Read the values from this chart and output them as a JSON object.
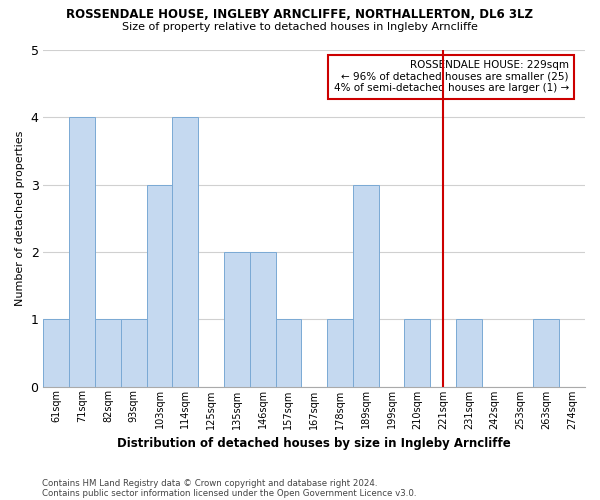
{
  "title1": "ROSSENDALE HOUSE, INGLEBY ARNCLIFFE, NORTHALLERTON, DL6 3LZ",
  "title2": "Size of property relative to detached houses in Ingleby Arncliffe",
  "xlabel": "Distribution of detached houses by size in Ingleby Arncliffe",
  "ylabel": "Number of detached properties",
  "footnote1": "Contains HM Land Registry data © Crown copyright and database right 2024.",
  "footnote2": "Contains public sector information licensed under the Open Government Licence v3.0.",
  "categories": [
    "61sqm",
    "71sqm",
    "82sqm",
    "93sqm",
    "103sqm",
    "114sqm",
    "125sqm",
    "135sqm",
    "146sqm",
    "157sqm",
    "167sqm",
    "178sqm",
    "189sqm",
    "199sqm",
    "210sqm",
    "221sqm",
    "231sqm",
    "242sqm",
    "253sqm",
    "263sqm",
    "274sqm"
  ],
  "values": [
    1,
    4,
    1,
    1,
    3,
    4,
    0,
    2,
    2,
    1,
    0,
    1,
    3,
    0,
    1,
    0,
    1,
    0,
    0,
    1,
    0
  ],
  "bar_color": "#c5d9f0",
  "bar_edge_color": "#7aa9d4",
  "red_line_x": 15,
  "annotation_title": "ROSSENDALE HOUSE: 229sqm",
  "annotation_line1": "← 96% of detached houses are smaller (25)",
  "annotation_line2": "4% of semi-detached houses are larger (1) →",
  "annotation_box_color": "#cc0000",
  "ylim": [
    0,
    5
  ],
  "yticks": [
    0,
    1,
    2,
    3,
    4,
    5
  ],
  "background_color": "#ffffff",
  "grid_color": "#d0d0d0"
}
